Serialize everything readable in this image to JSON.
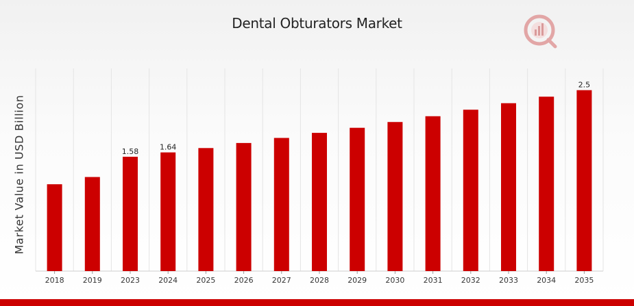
{
  "chart_data": {
    "type": "bar",
    "title": "Dental Obturators Market",
    "xlabel": "",
    "ylabel": "Market Value in USD Billion",
    "categories": [
      "2018",
      "2019",
      "2023",
      "2024",
      "2025",
      "2026",
      "2027",
      "2028",
      "2029",
      "2030",
      "2031",
      "2032",
      "2033",
      "2034",
      "2035"
    ],
    "values": [
      1.2,
      1.3,
      1.58,
      1.64,
      1.7,
      1.77,
      1.84,
      1.91,
      1.98,
      2.06,
      2.14,
      2.23,
      2.32,
      2.41,
      2.5
    ],
    "data_labels": [
      "",
      "",
      "1.58",
      "1.64",
      "",
      "",
      "",
      "",
      "",
      "",
      "",
      "",
      "",
      "",
      "2.5"
    ],
    "ylim": [
      0,
      2.8
    ],
    "bar_color": "#cc0000",
    "grid": "vertical",
    "legend": "none"
  },
  "colors": {
    "accent": "#cc0000",
    "logo": "#e2a6a6"
  },
  "logo_icon": "mrfr-logo-icon"
}
